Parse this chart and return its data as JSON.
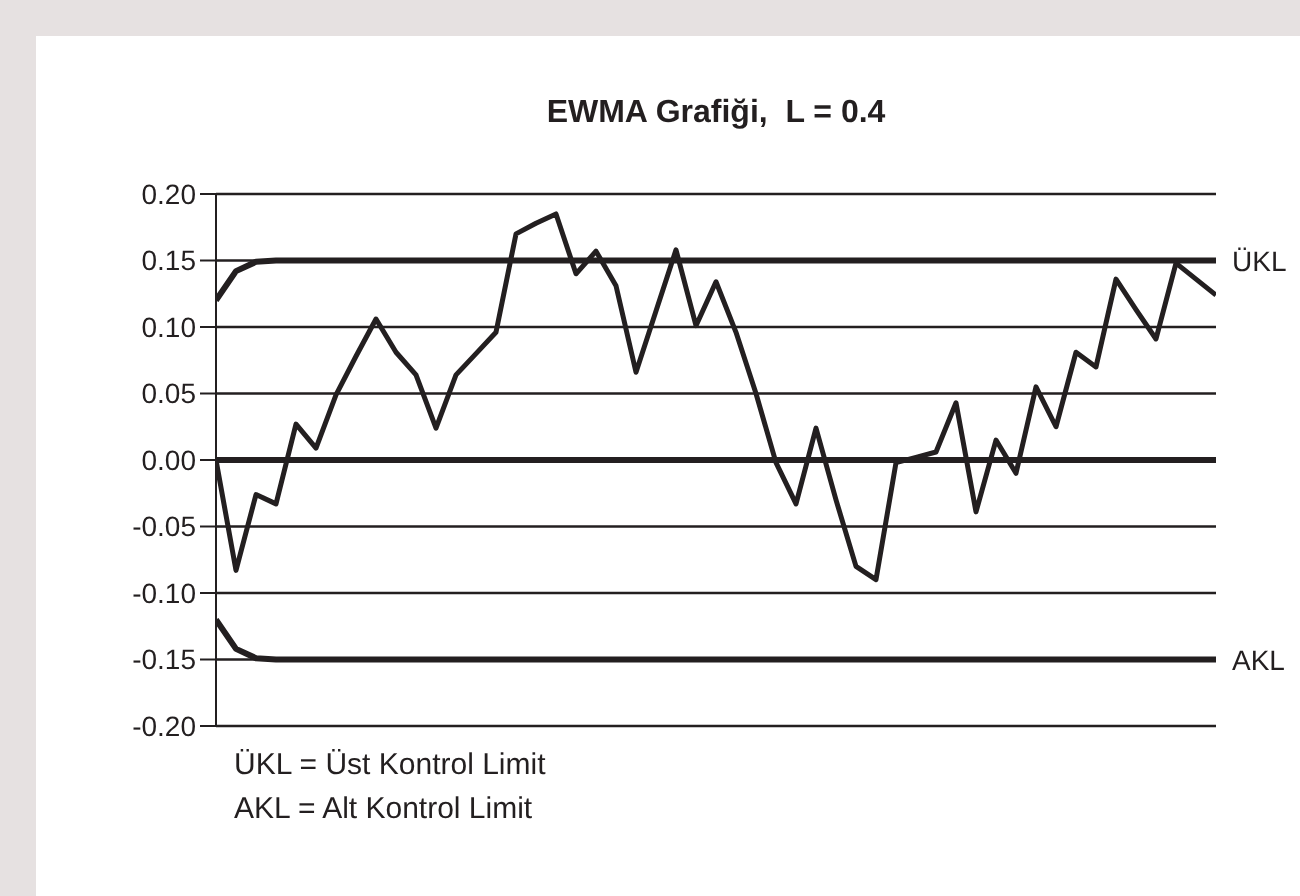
{
  "chart_data": {
    "type": "line",
    "title": "EWMA Grafiği,  L = 0.4",
    "categories": [
      null,
      null,
      null,
      null,
      null,
      null,
      null,
      null,
      null,
      null,
      null,
      null,
      null,
      null,
      null,
      null,
      null,
      null,
      null,
      null,
      null,
      null,
      null,
      null,
      null,
      null,
      null,
      null,
      null,
      null,
      null,
      null,
      null,
      null,
      null,
      null,
      null,
      null,
      null,
      null,
      null,
      null,
      null,
      null,
      null,
      null,
      null,
      null,
      null,
      null,
      null
    ],
    "series": [
      {
        "color": "#231f20",
        "values": [
          0,
          -0.083,
          -0.026,
          -0.033,
          0.027,
          0.009,
          0.049,
          0.078,
          0.106,
          0.081,
          0.064,
          0.024,
          0.064,
          0.08,
          0.096,
          0.17,
          0.178,
          0.185,
          0.14,
          0.157,
          0.131,
          0.066,
          0.112,
          0.158,
          0.101,
          0.134,
          0.096,
          0.05,
          -0.002,
          -0.033,
          0.024,
          -0.03,
          -0.08,
          -0.09,
          -0.002,
          0.002,
          0.006,
          0.043,
          -0.039,
          0.015,
          -0.01,
          0.055,
          0.025,
          0.081,
          0.07,
          0.136,
          0.113,
          0.091,
          0.148,
          0.136,
          0.124
        ]
      },
      {
        "name": "ÜKL",
        "color": "#231f20",
        "values": [
          0.12,
          0.142,
          0.149,
          0.15,
          0.15,
          0.15,
          0.15,
          0.15,
          0.15,
          0.15,
          0.15,
          0.15,
          0.15,
          0.15,
          0.15,
          0.15,
          0.15,
          0.15,
          0.15,
          0.15,
          0.15,
          0.15,
          0.15,
          0.15,
          0.15,
          0.15,
          0.15,
          0.15,
          0.15,
          0.15,
          0.15,
          0.15,
          0.15,
          0.15,
          0.15,
          0.15,
          0.15,
          0.15,
          0.15,
          0.15,
          0.15,
          0.15,
          0.15,
          0.15,
          0.15,
          0.15,
          0.15,
          0.15,
          0.15,
          0.15,
          0.15
        ]
      },
      {
        "name": "AKL",
        "color": "#231f20",
        "values": [
          -0.12,
          -0.142,
          -0.149,
          -0.15,
          -0.15,
          -0.15,
          -0.15,
          -0.15,
          -0.15,
          -0.15,
          -0.15,
          -0.15,
          -0.15,
          -0.15,
          -0.15,
          -0.15,
          -0.15,
          -0.15,
          -0.15,
          -0.15,
          -0.15,
          -0.15,
          -0.15,
          -0.15,
          -0.15,
          -0.15,
          -0.15,
          -0.15,
          -0.15,
          -0.15,
          -0.15,
          -0.15,
          -0.15,
          -0.15,
          -0.15,
          -0.15,
          -0.15,
          -0.15,
          -0.15,
          -0.15,
          -0.15,
          -0.15,
          -0.15,
          -0.15,
          -0.15,
          -0.15,
          -0.15,
          -0.15,
          -0.15,
          -0.15,
          -0.15
        ]
      }
    ],
    "ylim": [
      -0.2,
      0.2
    ],
    "yticks": [
      {
        "value": -0.2,
        "label": "-0.20"
      },
      {
        "value": -0.15,
        "label": "-0.15"
      },
      {
        "value": -0.1,
        "label": "-0.10"
      },
      {
        "value": -0.05,
        "label": "-0.05"
      },
      {
        "value": 0,
        "label": "0.00"
      },
      {
        "value": 0.05,
        "label": "0.05"
      },
      {
        "value": 0.1,
        "label": "0.10"
      },
      {
        "value": 0.15,
        "label": "0.15"
      },
      {
        "value": 0.2,
        "label": "0.20"
      }
    ],
    "ref_lines": [
      {
        "axis": "y",
        "value": 0,
        "color": "#231f20"
      }
    ],
    "grid": "y",
    "legend": false,
    "marker": "none",
    "line_style": "solid",
    "tick_labels": "y",
    "annotations": [
      "ÜKL = Üst Kontrol Limit",
      "AKL = Alt Kontrol Limit"
    ]
  }
}
